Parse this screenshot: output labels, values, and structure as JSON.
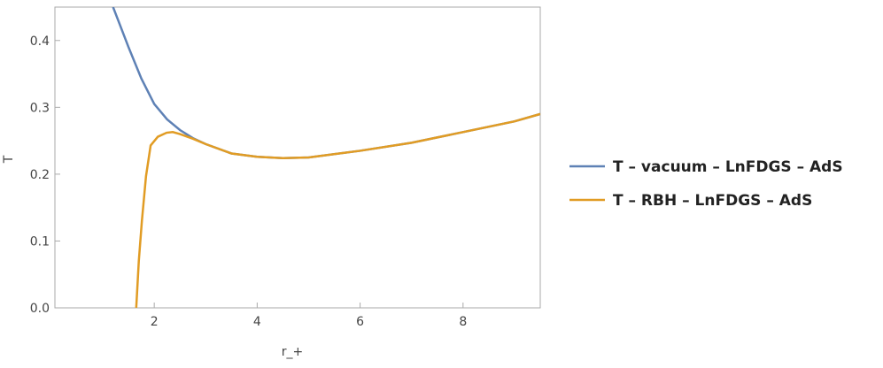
{
  "chart_data": {
    "type": "line",
    "x_label": "r_+",
    "y_label": "T",
    "xlim": [
      0.07,
      9.5
    ],
    "ylim": [
      0,
      0.45
    ],
    "xticks": [
      2,
      4,
      6,
      8
    ],
    "yticks": [
      {
        "value": 0,
        "label": "0.0"
      },
      0.1,
      0.2,
      0.3,
      0.4
    ],
    "series": [
      {
        "name": "T – vacuum – LnFDGS – AdS",
        "color": "#5e81b5",
        "x": [
          1.2,
          1.3,
          1.4,
          1.5,
          1.75,
          2,
          2.25,
          2.5,
          2.75,
          3,
          3.5,
          4,
          4.5,
          5,
          6,
          7,
          8,
          9,
          9.5
        ],
        "values": [
          0.45,
          0.43,
          0.41,
          0.39,
          0.343,
          0.305,
          0.282,
          0.266,
          0.254,
          0.245,
          0.231,
          0.226,
          0.224,
          0.225,
          0.235,
          0.247,
          0.263,
          0.279,
          0.29
        ]
      },
      {
        "name": "T – RBH – LnFDGS – AdS",
        "color": "#e19c24",
        "x": [
          1.65,
          1.7,
          1.76,
          1.84,
          1.93,
          2.07,
          2.24,
          2.36,
          2.5,
          2.75,
          3,
          3.5,
          4,
          4.5,
          5,
          6,
          7,
          8,
          9,
          9.5
        ],
        "values": [
          0,
          0.07,
          0.13,
          0.197,
          0.243,
          0.256,
          0.262,
          0.263,
          0.26,
          0.253,
          0.245,
          0.231,
          0.226,
          0.224,
          0.225,
          0.235,
          0.247,
          0.263,
          0.279,
          0.29
        ]
      }
    ]
  }
}
